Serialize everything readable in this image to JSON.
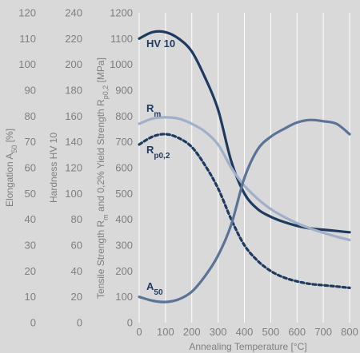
{
  "chart_data": {
    "type": "line",
    "x": [
      0,
      50,
      100,
      150,
      200,
      250,
      300,
      350,
      400,
      450,
      500,
      550,
      600,
      650,
      700,
      750,
      800
    ],
    "xlabel": "Annealing Temperature [°C]",
    "xlim": [
      0,
      800
    ],
    "x_ticks": [
      "0",
      "100",
      "200",
      "300",
      "400",
      "500",
      "600",
      "700",
      "800"
    ],
    "axes": [
      {
        "id": "strength",
        "ylabel": {
          "prefix": "Tensile Strength R",
          "sub1": "m",
          "mid": " and 0,2% Yield Strength R",
          "sub2": "p0,2",
          "suffix": " [MPa]"
        },
        "ylim": [
          0,
          1200
        ],
        "ticks": [
          "0",
          "100",
          "200",
          "300",
          "400",
          "500",
          "600",
          "700",
          "800",
          "900",
          "1000",
          "1100",
          "1200"
        ]
      },
      {
        "id": "hardness",
        "ylabel": "Hardness HV 10",
        "ylim": [
          0,
          240
        ],
        "ticks": [
          "0",
          "20",
          "40",
          "60",
          "80",
          "100",
          "120",
          "140",
          "160",
          "180",
          "200",
          "220",
          "240"
        ]
      },
      {
        "id": "elongation",
        "ylabel": {
          "prefix": "Elongation A",
          "sub1": "50",
          "suffix": " [%]"
        },
        "ylim": [
          0,
          120
        ],
        "ticks": [
          "0",
          "10",
          "20",
          "30",
          "40",
          "50",
          "60",
          "70",
          "80",
          "90",
          "100",
          "110",
          "120"
        ]
      }
    ],
    "series": [
      {
        "label": {
          "main": "HV 10",
          "sub": ""
        },
        "axis": "hardness",
        "color": "#1f3a5f",
        "dashed": false,
        "values": [
          220,
          225,
          225,
          220,
          210,
          190,
          165,
          125,
          100,
          88,
          82,
          78,
          75,
          73,
          72,
          71,
          70
        ]
      },
      {
        "label": {
          "main": "R",
          "sub": "m"
        },
        "axis": "strength",
        "color": "#9fb0c8",
        "dashed": false,
        "values": [
          770,
          790,
          795,
          790,
          770,
          740,
          690,
          600,
          530,
          480,
          440,
          410,
          385,
          365,
          348,
          333,
          320
        ]
      },
      {
        "label": {
          "main": "R",
          "sub": "p0,2"
        },
        "axis": "strength",
        "color": "#1f3a5f",
        "dashed": true,
        "values": [
          690,
          720,
          730,
          715,
          680,
          610,
          520,
          400,
          300,
          240,
          200,
          175,
          160,
          150,
          145,
          140,
          135
        ]
      },
      {
        "label": {
          "main": "A",
          "sub": "50"
        },
        "axis": "elongation",
        "color": "#5b7396",
        "dashed": false,
        "values": [
          10,
          8.5,
          8,
          9,
          12,
          18,
          26,
          38,
          56,
          67,
          72,
          75,
          77.5,
          78.5,
          78,
          77,
          73
        ]
      }
    ],
    "grid": "vertical",
    "colors": {
      "background": "#d9d9d9",
      "grid": "#ffffff",
      "tick_text": "#7f7f7f"
    }
  }
}
